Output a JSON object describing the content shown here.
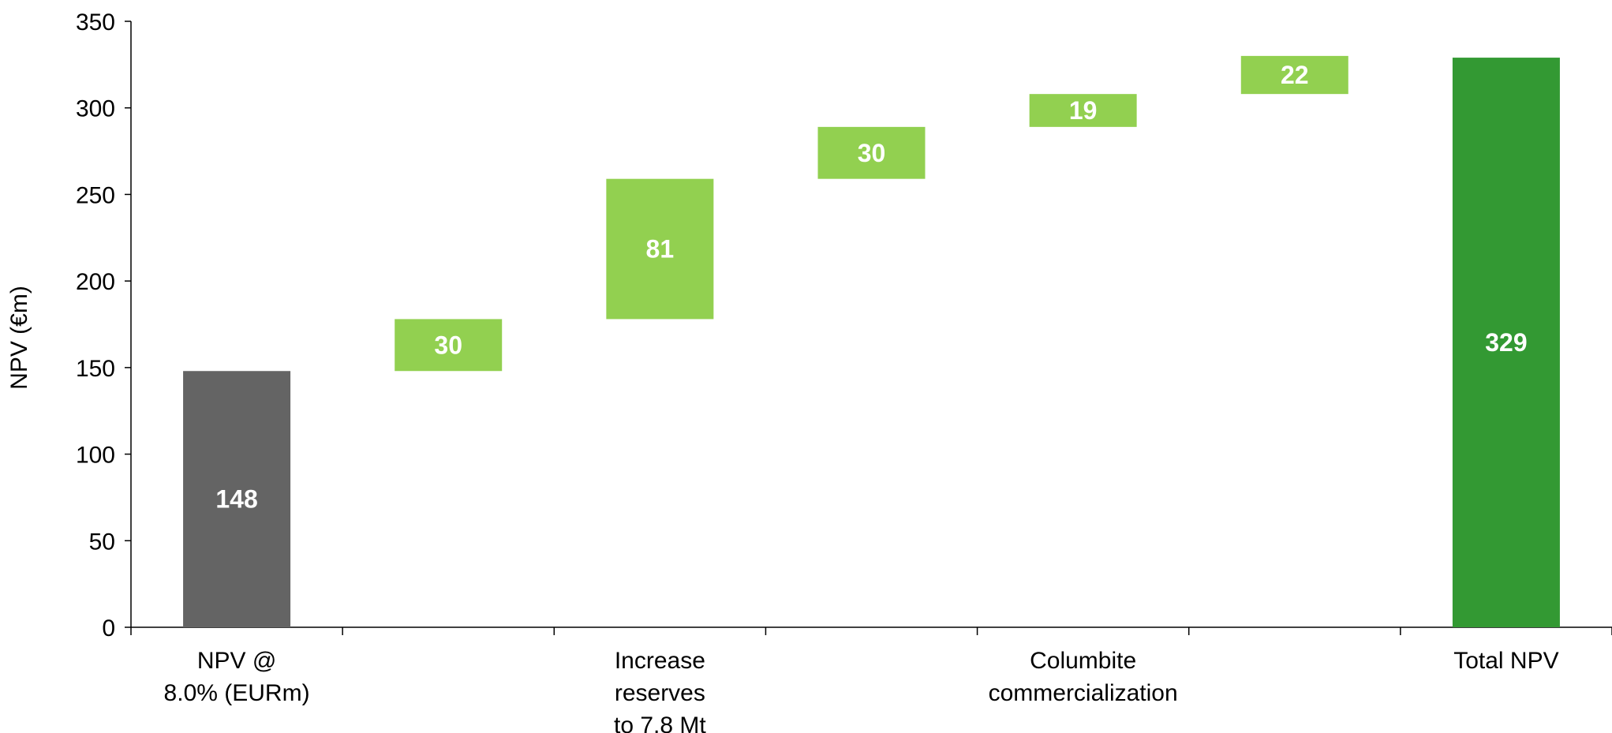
{
  "chart_data": {
    "type": "bar",
    "subtype": "waterfall",
    "ylabel": "NPV (€m)",
    "ylim": [
      0,
      350
    ],
    "yticks": [
      0,
      50,
      100,
      150,
      200,
      250,
      300,
      350
    ],
    "grid": false,
    "bars": [
      {
        "base": 0,
        "value": 148,
        "kind": "start",
        "label": "148"
      },
      {
        "base": 148,
        "value": 30,
        "kind": "increase",
        "label": "30"
      },
      {
        "base": 178,
        "value": 81,
        "kind": "increase",
        "label": "81"
      },
      {
        "base": 259,
        "value": 30,
        "kind": "increase",
        "label": "30"
      },
      {
        "base": 289,
        "value": 19,
        "kind": "increase",
        "label": "19"
      },
      {
        "base": 308,
        "value": 22,
        "kind": "increase",
        "label": "22"
      },
      {
        "base": 0,
        "value": 329,
        "kind": "total",
        "label": "329"
      }
    ],
    "category_labels": [
      {
        "slot": 0,
        "lines": [
          "NPV @",
          "8.0% (EURm)"
        ]
      },
      {
        "slot": 2,
        "lines": [
          "Increase",
          "reserves",
          "to 7.8 Mt"
        ]
      },
      {
        "slot": 4,
        "lines": [
          "Columbite",
          "commercialization"
        ]
      },
      {
        "slot": 6,
        "lines": [
          "Total NPV"
        ]
      }
    ],
    "colors": {
      "start": "#646464",
      "increase": "#92d050",
      "total": "#339933",
      "axis": "#000000"
    }
  }
}
